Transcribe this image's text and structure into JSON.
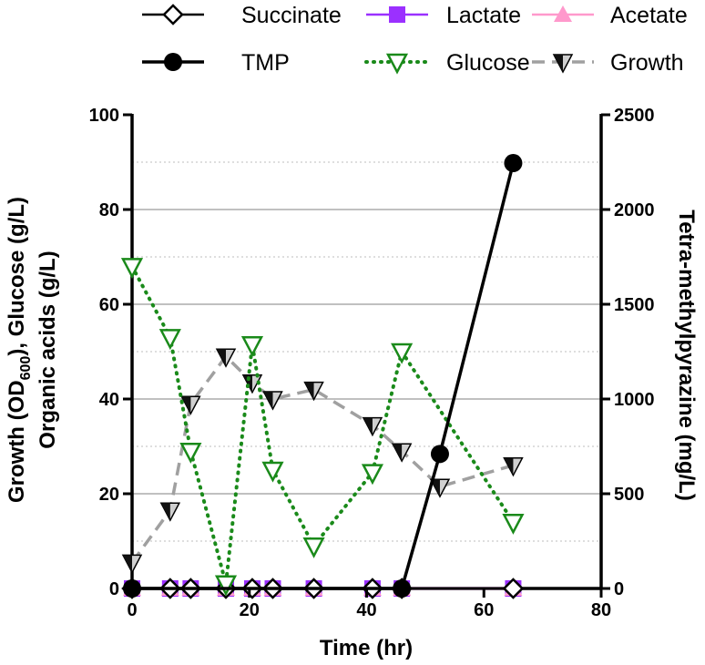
{
  "chart_data": {
    "type": "line",
    "xlabel": "Time (hr)",
    "ylabel_left_line1_prefix": "Growth (OD",
    "ylabel_left_line1_sub": "600",
    "ylabel_left_line1_suffix": "), Glucose (g/L)",
    "ylabel_left_line2": "Organic acids (g/L)",
    "ylabel_right": "Tetra-methylpyrazine (mg/L)",
    "xlim": [
      0,
      80
    ],
    "ylim_left": [
      0,
      100
    ],
    "ylim_right": [
      0,
      2500
    ],
    "x_ticks": [
      0,
      20,
      40,
      60,
      80
    ],
    "y_left_ticks": [
      0,
      20,
      40,
      60,
      80,
      100
    ],
    "y_right_ticks": [
      0,
      500,
      1000,
      1500,
      2000,
      2500
    ],
    "grid": "horizontal",
    "legend_position": "top",
    "series": [
      {
        "name": "Succinate",
        "axis": "left",
        "color": "#000000",
        "marker": "diamond-open",
        "x": [
          0,
          6.5,
          10,
          16,
          20.5,
          24,
          31,
          41,
          46,
          65
        ],
        "y": [
          0,
          0,
          0,
          0,
          0,
          0,
          0,
          0,
          0,
          0
        ]
      },
      {
        "name": "Lactate",
        "axis": "left",
        "color": "#9b30ff",
        "marker": "square",
        "x": [
          0,
          6.5,
          10,
          16,
          20.5,
          24,
          31,
          41,
          46,
          65
        ],
        "y": [
          0,
          0,
          0,
          0,
          0,
          0,
          0,
          0,
          0,
          0
        ]
      },
      {
        "name": "Acetate",
        "axis": "left",
        "color": "#ff99cc",
        "marker": "triangle-up",
        "x": [
          0,
          6.5,
          10,
          16,
          20.5,
          24,
          31,
          41,
          46,
          65
        ],
        "y": [
          0,
          0,
          0,
          0,
          0,
          0,
          0,
          0,
          0,
          0
        ]
      },
      {
        "name": "TMP",
        "axis": "right",
        "color": "#000000",
        "marker": "circle",
        "x": [
          0,
          46,
          52.5,
          65
        ],
        "y": [
          0,
          0,
          710,
          2245
        ]
      },
      {
        "name": "Glucose",
        "axis": "left",
        "color": "#1a8a1a",
        "marker": "triangle-down-open",
        "x": [
          0,
          6.5,
          10,
          16,
          20.5,
          24,
          31,
          41,
          46,
          65
        ],
        "y": [
          68,
          53,
          29,
          1,
          51.5,
          25,
          9,
          24.5,
          50,
          14
        ]
      },
      {
        "name": "Growth",
        "axis": "left",
        "color": "#a0a0a0",
        "marker": "triangle-down-half",
        "x": [
          0,
          6.5,
          10,
          16,
          20.5,
          24,
          31,
          41,
          46,
          52.5,
          65
        ],
        "y": [
          5.5,
          16.5,
          39,
          49,
          43.5,
          40,
          42,
          34.5,
          29,
          21.5,
          26
        ]
      }
    ]
  }
}
